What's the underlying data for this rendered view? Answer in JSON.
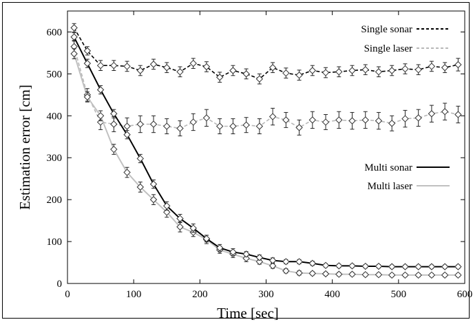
{
  "chart_data": {
    "type": "line",
    "xlabel": "Time [sec]",
    "ylabel": "Estimation error [cm]",
    "xlim": [
      0,
      600
    ],
    "ylim": [
      0,
      650
    ],
    "xticks": [
      0,
      100,
      200,
      300,
      400,
      500,
      600
    ],
    "yticks": [
      0,
      100,
      200,
      300,
      400,
      500,
      600
    ],
    "grid": false,
    "legend_placement": "top-right and center-right",
    "series": [
      {
        "name": "Single sonar",
        "style": "dashed",
        "color": "#000000",
        "x": [
          10,
          30,
          50,
          70,
          90,
          110,
          130,
          150,
          170,
          190,
          210,
          230,
          250,
          270,
          290,
          310,
          330,
          350,
          370,
          390,
          410,
          430,
          450,
          470,
          490,
          510,
          530,
          550,
          570,
          590
        ],
        "y": [
          610,
          555,
          520,
          520,
          518,
          508,
          523,
          515,
          505,
          525,
          517,
          492,
          508,
          500,
          488,
          515,
          502,
          497,
          508,
          503,
          505,
          508,
          510,
          505,
          508,
          512,
          510,
          518,
          515,
          522
        ],
        "err": [
          10,
          10,
          12,
          12,
          12,
          12,
          12,
          12,
          12,
          12,
          12,
          12,
          12,
          12,
          12,
          12,
          12,
          12,
          12,
          12,
          12,
          12,
          12,
          12,
          12,
          12,
          12,
          12,
          12,
          15
        ]
      },
      {
        "name": "Single laser",
        "style": "dashed",
        "color": "#b8b8b8",
        "x": [
          10,
          30,
          50,
          70,
          90,
          110,
          130,
          150,
          170,
          190,
          210,
          230,
          250,
          270,
          290,
          310,
          330,
          350,
          370,
          390,
          410,
          430,
          450,
          470,
          490,
          510,
          530,
          550,
          570,
          590
        ],
        "y": [
          565,
          450,
          385,
          380,
          375,
          380,
          380,
          375,
          370,
          385,
          395,
          375,
          375,
          378,
          375,
          398,
          390,
          372,
          390,
          385,
          390,
          388,
          390,
          388,
          382,
          393,
          395,
          405,
          410,
          403
        ],
        "err": [
          15,
          15,
          18,
          18,
          20,
          20,
          20,
          18,
          18,
          20,
          20,
          18,
          18,
          18,
          18,
          20,
          18,
          18,
          20,
          18,
          20,
          20,
          20,
          20,
          18,
          20,
          20,
          20,
          20,
          20
        ]
      },
      {
        "name": "Multi sonar",
        "style": "solid",
        "color": "#000000",
        "x": [
          10,
          30,
          50,
          70,
          90,
          110,
          130,
          150,
          170,
          190,
          210,
          230,
          250,
          270,
          290,
          310,
          330,
          350,
          370,
          390,
          410,
          430,
          450,
          470,
          490,
          510,
          530,
          550,
          570,
          590
        ],
        "y": [
          588,
          525,
          462,
          405,
          355,
          298,
          237,
          185,
          155,
          132,
          107,
          85,
          75,
          70,
          62,
          55,
          52,
          52,
          48,
          43,
          42,
          42,
          41,
          41,
          40,
          40,
          40,
          40,
          40,
          40
        ],
        "err": [
          10,
          10,
          10,
          10,
          10,
          10,
          10,
          10,
          10,
          10,
          8,
          8,
          8,
          6,
          6,
          6,
          5,
          5,
          5,
          4,
          4,
          4,
          4,
          4,
          4,
          4,
          4,
          4,
          4,
          4
        ]
      },
      {
        "name": "Multi laser",
        "style": "solid",
        "color": "#c0c0c0",
        "x": [
          10,
          30,
          50,
          70,
          90,
          110,
          130,
          150,
          170,
          190,
          210,
          230,
          250,
          270,
          290,
          310,
          330,
          350,
          370,
          390,
          410,
          430,
          450,
          470,
          490,
          510,
          530,
          550,
          570,
          590
        ],
        "y": [
          548,
          445,
          400,
          320,
          265,
          230,
          200,
          170,
          135,
          122,
          105,
          80,
          70,
          60,
          52,
          42,
          30,
          25,
          24,
          23,
          22,
          22,
          21,
          21,
          20,
          20,
          20,
          20,
          20,
          20
        ],
        "err": [
          12,
          12,
          12,
          12,
          12,
          12,
          12,
          12,
          12,
          10,
          10,
          8,
          8,
          8,
          6,
          6,
          5,
          5,
          4,
          4,
          4,
          4,
          4,
          4,
          4,
          4,
          4,
          4,
          4,
          4
        ]
      }
    ]
  }
}
